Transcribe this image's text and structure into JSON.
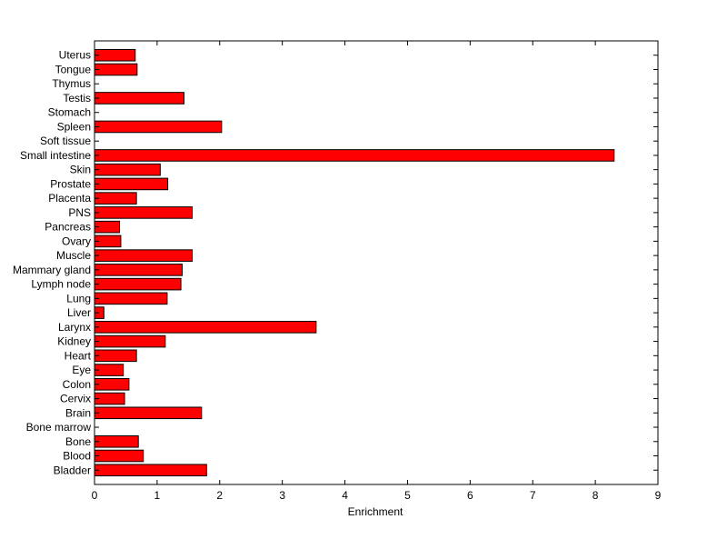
{
  "chart_data": {
    "type": "bar",
    "orientation": "horizontal",
    "categories": [
      "Uterus",
      "Tongue",
      "Thymus",
      "Testis",
      "Stomach",
      "Spleen",
      "Soft tissue",
      "Small intestine",
      "Skin",
      "Prostate",
      "Placenta",
      "PNS",
      "Pancreas",
      "Ovary",
      "Muscle",
      "Mammary gland",
      "Lymph node",
      "Lung",
      "Liver",
      "Larynx",
      "Kidney",
      "Heart",
      "Eye",
      "Colon",
      "Cervix",
      "Brain",
      "Bone marrow",
      "Bone",
      "Blood",
      "Bladder"
    ],
    "values": [
      0.65,
      0.68,
      0,
      1.43,
      0,
      2.03,
      0,
      8.3,
      1.05,
      1.17,
      0.67,
      1.56,
      0.4,
      0.42,
      1.56,
      1.4,
      1.38,
      1.16,
      0.15,
      3.54,
      1.13,
      0.67,
      0.46,
      0.55,
      0.48,
      1.71,
      0,
      0.7,
      0.78,
      1.79
    ],
    "xlabel": "Enrichment",
    "ylabel": "",
    "title": "",
    "xlim": [
      0,
      9
    ],
    "xticks": [
      "0",
      "1",
      "2",
      "3",
      "4",
      "5",
      "6",
      "7",
      "8",
      "9"
    ],
    "grid": false,
    "legend": "none",
    "colors": {
      "bar_fill": "#ff0000",
      "bar_stroke": "#000000",
      "axis": "#000000",
      "background": "#ffffff"
    }
  }
}
